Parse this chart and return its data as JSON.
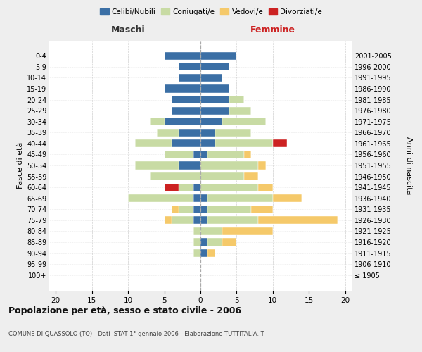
{
  "age_groups": [
    "100+",
    "95-99",
    "90-94",
    "85-89",
    "80-84",
    "75-79",
    "70-74",
    "65-69",
    "60-64",
    "55-59",
    "50-54",
    "45-49",
    "40-44",
    "35-39",
    "30-34",
    "25-29",
    "20-24",
    "15-19",
    "10-14",
    "5-9",
    "0-4"
  ],
  "birth_years": [
    "≤ 1905",
    "1906-1910",
    "1911-1915",
    "1916-1920",
    "1921-1925",
    "1926-1930",
    "1931-1935",
    "1936-1940",
    "1941-1945",
    "1946-1950",
    "1951-1955",
    "1956-1960",
    "1961-1965",
    "1966-1970",
    "1971-1975",
    "1976-1980",
    "1981-1985",
    "1986-1990",
    "1991-1995",
    "1996-2000",
    "2001-2005"
  ],
  "colors": {
    "celibi": "#3b6fa5",
    "coniugati": "#c8dba4",
    "vedovi": "#f5c96a",
    "divorziati": "#cc2222"
  },
  "maschi": {
    "celibi": [
      0,
      0,
      0,
      0,
      0,
      1,
      1,
      1,
      1,
      0,
      3,
      1,
      4,
      3,
      5,
      4,
      4,
      5,
      3,
      3,
      5
    ],
    "coniugati": [
      0,
      0,
      1,
      1,
      1,
      3,
      2,
      9,
      2,
      7,
      6,
      4,
      5,
      3,
      2,
      0,
      0,
      0,
      0,
      0,
      0
    ],
    "vedovi": [
      0,
      0,
      0,
      0,
      0,
      1,
      1,
      0,
      0,
      0,
      0,
      0,
      0,
      0,
      0,
      0,
      0,
      0,
      0,
      0,
      0
    ],
    "divorziati": [
      0,
      0,
      0,
      0,
      0,
      0,
      0,
      0,
      2,
      0,
      0,
      0,
      0,
      0,
      0,
      0,
      0,
      0,
      0,
      0,
      0
    ]
  },
  "femmine": {
    "celibi": [
      0,
      0,
      1,
      1,
      0,
      1,
      1,
      1,
      0,
      0,
      0,
      1,
      2,
      2,
      3,
      4,
      4,
      4,
      3,
      4,
      5
    ],
    "coniugati": [
      0,
      0,
      0,
      2,
      3,
      7,
      6,
      9,
      8,
      6,
      8,
      5,
      8,
      5,
      6,
      3,
      2,
      0,
      0,
      0,
      0
    ],
    "vedovi": [
      0,
      0,
      1,
      2,
      7,
      11,
      3,
      4,
      2,
      2,
      1,
      1,
      0,
      0,
      0,
      0,
      0,
      0,
      0,
      0,
      0
    ],
    "divorziati": [
      0,
      0,
      0,
      0,
      0,
      0,
      0,
      0,
      0,
      0,
      0,
      0,
      2,
      0,
      0,
      0,
      0,
      0,
      0,
      0,
      0
    ]
  },
  "xlim": [
    -21,
    21
  ],
  "xticks": [
    -20,
    -15,
    -10,
    -5,
    0,
    5,
    10,
    15,
    20
  ],
  "xtick_labels": [
    "20",
    "15",
    "10",
    "5",
    "0",
    "5",
    "10",
    "15",
    "20"
  ],
  "title": "Popolazione per età, sesso e stato civile - 2006",
  "subtitle": "COMUNE DI QUASSOLO (TO) - Dati ISTAT 1° gennaio 2006 - Elaborazione TUTTITALIA.IT",
  "ylabel_left": "Fasce di età",
  "ylabel_right": "Anni di nascita",
  "legend_labels": [
    "Celibi/Nubili",
    "Coniugati/e",
    "Vedovi/e",
    "Divorziati/e"
  ],
  "bg_color": "#eeeeee",
  "plot_bg": "#ffffff",
  "grid_color": "#cccccc",
  "maschi_label": "Maschi",
  "femmine_label": "Femmine",
  "femmine_color": "#cc2222",
  "maschi_color": "#333333"
}
